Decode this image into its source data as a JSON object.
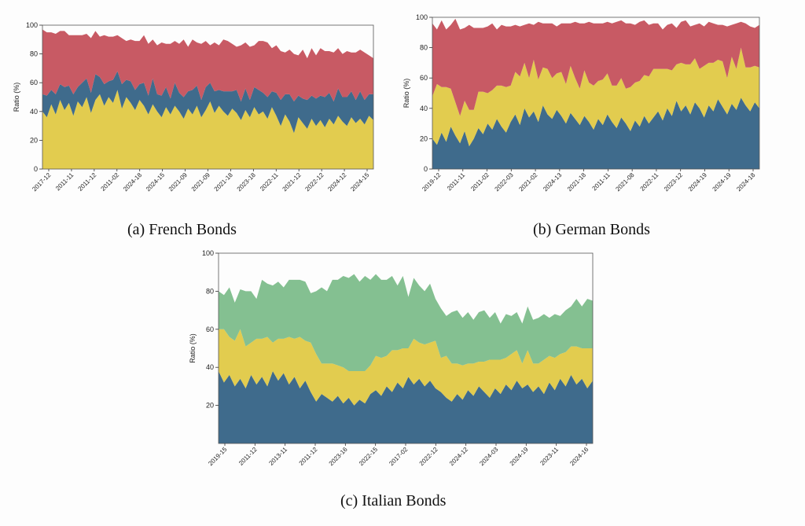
{
  "colors": {
    "blue": "#3f6b8c",
    "yellow": "#e2cc4f",
    "red": "#c85a64",
    "green": "#84c091"
  },
  "chart_data": [
    {
      "type": "area",
      "caption": "(a) French Bonds",
      "ylabel": "Ratio (%)",
      "ylim": [
        0,
        100
      ],
      "yticks": [
        0,
        20,
        40,
        60,
        80,
        100
      ],
      "xticks": [
        "2017-12",
        "2011-11",
        "2011-12",
        "2011-02",
        "2024-18",
        "2024-15",
        "2021-09",
        "2021-09",
        "2021-18",
        "2023-18",
        "2022-11",
        "2021-12",
        "2022-12",
        "2024-12",
        "2024-15"
      ],
      "series": [
        {
          "name": "",
          "color": "yellow",
          "values": [
            40,
            36,
            45,
            38,
            48,
            41,
            46,
            37,
            47,
            43,
            50,
            39,
            48,
            52,
            44,
            50,
            46,
            55,
            42,
            50,
            46,
            41,
            48,
            44,
            38,
            45,
            40,
            36,
            43,
            38,
            44,
            40,
            35,
            42,
            38,
            44,
            36,
            41,
            47,
            39,
            44,
            40,
            37,
            42,
            39,
            34,
            41,
            36,
            43,
            38,
            40,
            35,
            43,
            37,
            30,
            38,
            33,
            25,
            36,
            32,
            28,
            35,
            30,
            34,
            29,
            35,
            31,
            37,
            33,
            30,
            36,
            32,
            35,
            31,
            37,
            34
          ]
        },
        {
          "name": "",
          "color": "blue",
          "values": [
            12,
            15,
            10,
            14,
            11,
            16,
            12,
            15,
            10,
            17,
            13,
            14,
            18,
            12,
            15,
            11,
            16,
            13,
            17,
            12,
            15,
            14,
            11,
            16,
            13,
            18,
            12,
            15,
            14,
            11,
            16,
            13,
            15,
            12,
            17,
            14,
            12,
            16,
            13,
            15,
            11,
            14,
            17,
            12,
            16,
            13,
            15,
            12,
            14,
            17,
            13,
            15,
            11,
            16,
            18,
            14,
            19,
            22,
            15,
            17,
            20,
            16,
            19,
            17,
            21,
            18,
            16,
            19,
            17,
            20,
            18,
            16,
            19,
            17,
            15,
            18
          ]
        },
        {
          "name": "",
          "color": "red",
          "values": [
            45,
            44,
            40,
            42,
            37,
            39,
            35,
            41,
            36,
            33,
            31,
            38,
            30,
            28,
            34,
            31,
            30,
            25,
            32,
            27,
            29,
            34,
            30,
            33,
            36,
            27,
            34,
            37,
            30,
            38,
            29,
            34,
            40,
            31,
            35,
            30,
            39,
            32,
            26,
            34,
            31,
            36,
            35,
            33,
            30,
            39,
            32,
            37,
            29,
            34,
            36,
            38,
            30,
            33,
            34,
            29,
            31,
            33,
            28,
            34,
            29,
            33,
            30,
            33,
            32,
            29,
            34,
            28,
            30,
            32,
            27,
            33,
            29,
            33,
            27,
            25
          ]
        }
      ]
    },
    {
      "type": "area",
      "caption": "(b) German Bonds",
      "ylabel": "Ratio (%)",
      "ylim": [
        0,
        100
      ],
      "yticks": [
        0,
        20,
        40,
        60,
        80,
        100
      ],
      "xticks": [
        "2019-12",
        "2011-11",
        "2011-02",
        "2022-03",
        "2021-02",
        "2024-13",
        "2021-18",
        "2011-11",
        "2021-08",
        "2022-11",
        "2023-12",
        "2024-19",
        "2024-19",
        "2024-18"
      ],
      "series": [
        {
          "name": "",
          "color": "blue",
          "values": [
            20,
            16,
            24,
            18,
            28,
            22,
            17,
            25,
            15,
            20,
            27,
            23,
            30,
            26,
            33,
            28,
            24,
            31,
            36,
            29,
            40,
            34,
            38,
            31,
            42,
            36,
            33,
            39,
            35,
            30,
            37,
            33,
            29,
            35,
            31,
            26,
            33,
            29,
            36,
            31,
            27,
            34,
            30,
            25,
            32,
            28,
            35,
            30,
            34,
            38,
            32,
            40,
            35,
            45,
            38,
            42,
            36,
            44,
            40,
            34,
            42,
            38,
            46,
            41,
            36,
            43,
            39,
            47,
            42,
            38,
            44,
            40
          ]
        },
        {
          "name": "",
          "color": "yellow",
          "values": [
            28,
            40,
            30,
            36,
            25,
            22,
            18,
            20,
            24,
            19,
            24,
            28,
            20,
            26,
            22,
            27,
            30,
            24,
            28,
            32,
            30,
            26,
            34,
            28,
            25,
            30,
            27,
            24,
            29,
            26,
            31,
            27,
            24,
            30,
            26,
            29,
            25,
            30,
            27,
            24,
            28,
            26,
            23,
            29,
            25,
            30,
            27,
            31,
            32,
            28,
            34,
            26,
            30,
            24,
            32,
            27,
            33,
            29,
            26,
            34,
            28,
            32,
            26,
            30,
            24,
            31,
            27,
            33,
            25,
            29,
            24,
            27
          ]
        },
        {
          "name": "",
          "color": "red",
          "values": [
            48,
            36,
            44,
            38,
            42,
            55,
            57,
            48,
            56,
            54,
            42,
            42,
            44,
            44,
            37,
            40,
            40,
            39,
            31,
            33,
            25,
            36,
            23,
            38,
            29,
            30,
            36,
            31,
            32,
            40,
            28,
            37,
            43,
            31,
            40,
            41,
            38,
            37,
            34,
            41,
            42,
            38,
            43,
            42,
            38,
            39,
            36,
            34,
            30,
            30,
            26,
            29,
            31,
            24,
            27,
            29,
            25,
            22,
            30,
            26,
            27,
            26,
            23,
            24,
            34,
            21,
            30,
            17,
            29,
            27,
            25,
            28
          ]
        }
      ]
    },
    {
      "type": "area",
      "caption": "(c) Italian Bonds",
      "ylabel": "Ratio (%)",
      "ylim": [
        0,
        100
      ],
      "yticks": [
        20,
        40,
        60,
        80,
        100
      ],
      "xticks": [
        "2019-15",
        "2011-12",
        "2013-11",
        "2011-12",
        "2023-16",
        "2022-15",
        "2017-02",
        "2022-12",
        "2024-12",
        "2024-03",
        "2024-19",
        "2023-11",
        "2024-16"
      ],
      "series": [
        {
          "name": "",
          "color": "blue",
          "values": [
            38,
            32,
            36,
            30,
            34,
            29,
            36,
            31,
            35,
            30,
            38,
            33,
            37,
            31,
            35,
            29,
            33,
            27,
            22,
            26,
            24,
            22,
            25,
            21,
            24,
            20,
            23,
            21,
            26,
            28,
            25,
            30,
            27,
            32,
            29,
            35,
            31,
            34,
            30,
            33,
            29,
            27,
            24,
            22,
            26,
            23,
            28,
            25,
            30,
            27,
            24,
            29,
            26,
            31,
            28,
            33,
            29,
            31,
            27,
            30,
            26,
            32,
            28,
            34,
            30,
            36,
            31,
            34,
            29,
            33
          ]
        },
        {
          "name": "",
          "color": "yellow",
          "values": [
            22,
            28,
            20,
            24,
            26,
            22,
            17,
            24,
            20,
            26,
            15,
            22,
            18,
            25,
            20,
            27,
            21,
            26,
            25,
            16,
            18,
            20,
            16,
            19,
            14,
            18,
            15,
            17,
            15,
            18,
            20,
            16,
            22,
            17,
            21,
            15,
            24,
            19,
            22,
            20,
            25,
            18,
            22,
            20,
            16,
            18,
            14,
            17,
            13,
            16,
            20,
            15,
            18,
            14,
            19,
            16,
            13,
            18,
            15,
            12,
            18,
            14,
            17,
            13,
            18,
            15,
            20,
            16,
            21,
            17
          ]
        },
        {
          "name": "",
          "color": "green",
          "values": [
            20,
            18,
            26,
            20,
            21,
            29,
            27,
            21,
            31,
            28,
            30,
            30,
            27,
            30,
            31,
            30,
            31,
            26,
            33,
            40,
            38,
            44,
            45,
            48,
            49,
            51,
            47,
            50,
            45,
            43,
            41,
            40,
            39,
            34,
            38,
            27,
            32,
            30,
            28,
            31,
            22,
            26,
            21,
            27,
            28,
            25,
            27,
            23,
            26,
            27,
            22,
            25,
            19,
            23,
            20,
            20,
            21,
            23,
            23,
            24,
            24,
            20,
            23,
            20,
            22,
            21,
            25,
            22,
            26,
            25
          ]
        }
      ]
    }
  ]
}
